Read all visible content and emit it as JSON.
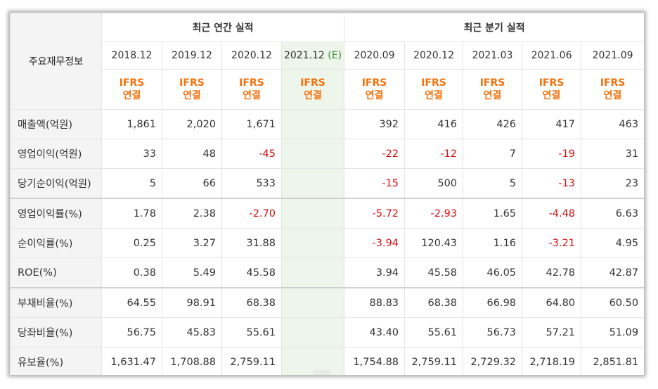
{
  "header": {
    "row_label": "주요재무정보",
    "annual_group": "최근 연간 실적",
    "quarter_group": "최근 분기 실적",
    "basis_line1": "IFRS",
    "basis_line2": "연결",
    "periods": [
      {
        "label": "2018.12",
        "est": ""
      },
      {
        "label": "2019.12",
        "est": ""
      },
      {
        "label": "2020.12",
        "est": ""
      },
      {
        "label": "2021.12",
        "est": "(E)"
      },
      {
        "label": "2020.09",
        "est": ""
      },
      {
        "label": "2020.12",
        "est": ""
      },
      {
        "label": "2021.03",
        "est": ""
      },
      {
        "label": "2021.06",
        "est": ""
      },
      {
        "label": "2021.09",
        "est": ""
      }
    ]
  },
  "rows": [
    {
      "label": "매출액(억원)",
      "values": [
        "1,861",
        "2,020",
        "1,671",
        "",
        "392",
        "416",
        "426",
        "417",
        "463"
      ],
      "neg": [
        0,
        0,
        0,
        0,
        0,
        0,
        0,
        0,
        0
      ]
    },
    {
      "label": "영업이익(억원)",
      "values": [
        "33",
        "48",
        "-45",
        "",
        "-22",
        "-12",
        "7",
        "-19",
        "31"
      ],
      "neg": [
        0,
        0,
        1,
        0,
        1,
        1,
        0,
        1,
        0
      ]
    },
    {
      "label": "당기순이익(억원)",
      "values": [
        "5",
        "66",
        "533",
        "",
        "-15",
        "500",
        "5",
        "-13",
        "23"
      ],
      "neg": [
        0,
        0,
        0,
        0,
        1,
        0,
        0,
        1,
        0
      ]
    },
    {
      "label": "영업이익률(%)",
      "values": [
        "1.78",
        "2.38",
        "-2.70",
        "",
        "-5.72",
        "-2.93",
        "1.65",
        "-4.48",
        "6.63"
      ],
      "neg": [
        0,
        0,
        1,
        0,
        1,
        1,
        0,
        1,
        0
      ]
    },
    {
      "label": "순이익률(%)",
      "values": [
        "0.25",
        "3.27",
        "31.88",
        "",
        "-3.94",
        "120.43",
        "1.16",
        "-3.21",
        "4.95"
      ],
      "neg": [
        0,
        0,
        0,
        0,
        1,
        0,
        0,
        1,
        0
      ]
    },
    {
      "label": "ROE(%)",
      "values": [
        "0.38",
        "5.49",
        "45.58",
        "",
        "3.94",
        "45.58",
        "46.05",
        "42.78",
        "42.87"
      ],
      "neg": [
        0,
        0,
        0,
        0,
        0,
        0,
        0,
        0,
        0
      ]
    },
    {
      "label": "부채비율(%)",
      "values": [
        "64.55",
        "98.91",
        "68.38",
        "",
        "88.83",
        "68.38",
        "66.98",
        "64.80",
        "60.50"
      ],
      "neg": [
        0,
        0,
        0,
        0,
        0,
        0,
        0,
        0,
        0
      ]
    },
    {
      "label": "당좌비율(%)",
      "values": [
        "56.75",
        "45.83",
        "55.61",
        "",
        "43.40",
        "55.61",
        "56.73",
        "57.21",
        "51.09"
      ],
      "neg": [
        0,
        0,
        0,
        0,
        0,
        0,
        0,
        0,
        0
      ]
    },
    {
      "label": "유보율(%)",
      "values": [
        "1,631.47",
        "1,708.88",
        "2,759.11",
        "",
        "1,754.88",
        "2,759.11",
        "2,729.32",
        "2,718.19",
        "2,851.81"
      ],
      "neg": [
        0,
        0,
        0,
        0,
        0,
        0,
        0,
        0,
        0
      ]
    }
  ],
  "colors": {
    "negative": "#d31010",
    "ifrs": "#f4710c",
    "estimate": "#3a8d3a",
    "estimate_bg": "#eef5ea"
  }
}
